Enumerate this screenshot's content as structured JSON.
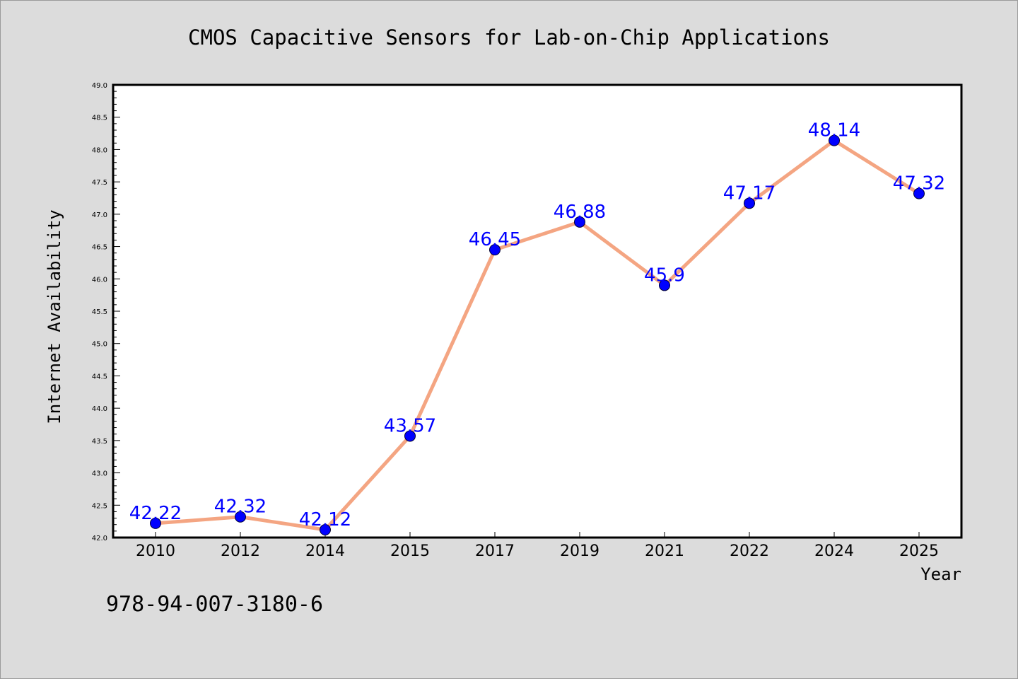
{
  "chart_data": {
    "type": "line",
    "title": "CMOS Capacitive Sensors for Lab-on-Chip Applications",
    "xlabel": "Year",
    "ylabel": "Internet Availability",
    "categories": [
      "2010",
      "2012",
      "2014",
      "2015",
      "2017",
      "2019",
      "2021",
      "2022",
      "2024",
      "2025"
    ],
    "series": [
      {
        "values": [
          42.22,
          42.32,
          42.12,
          43.57,
          46.45,
          46.88,
          45.9,
          47.17,
          48.14,
          47.32
        ],
        "labels": [
          "42.22",
          "42.32",
          "42.12",
          "43.57",
          "46.45",
          "46.88",
          "45.9",
          "47.17",
          "48.14",
          "47.32"
        ]
      }
    ],
    "ylim": [
      42.0,
      49.0
    ],
    "yticks": [
      "42.0",
      "42.5",
      "43.0",
      "43.5",
      "44.0",
      "44.5",
      "45.0",
      "45.5",
      "46.0",
      "46.5",
      "47.0",
      "47.5",
      "48.0",
      "48.5",
      "49.0"
    ],
    "grid": false,
    "legend": "none",
    "colors": {
      "line": "#f4a582",
      "marker": "#0000ff",
      "label": "#0000ff",
      "plot_bg": "#ffffff",
      "figure_bg": "#dcdcdc"
    }
  },
  "footnote": "978-94-007-3180-6"
}
